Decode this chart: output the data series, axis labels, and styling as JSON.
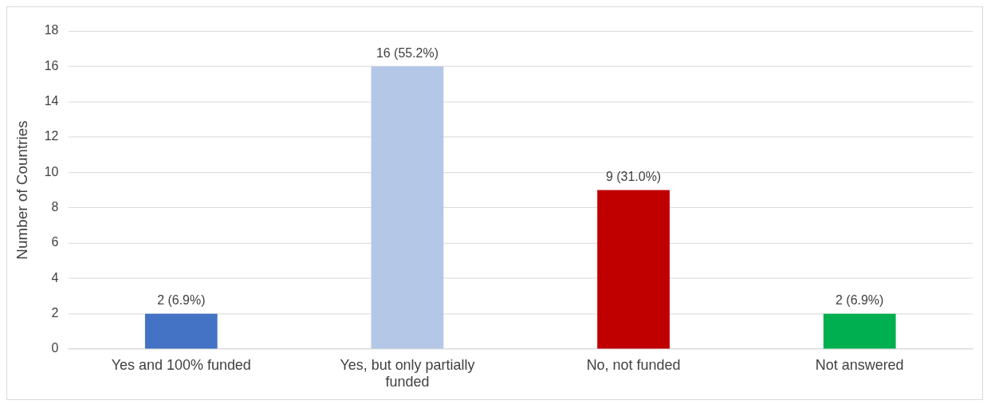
{
  "chart_data": {
    "type": "bar",
    "ylabel": "Number of Countries",
    "categories": [
      "Yes and 100% funded",
      "Yes, but only partially funded",
      "No, not funded",
      "Not answered"
    ],
    "values": [
      2,
      16,
      9,
      2
    ],
    "colors": [
      "#4472c4",
      "#b4c7e7",
      "#c00000",
      "#00b050"
    ],
    "value_labels": [
      "2 (6.9%)",
      "16 (55.2%)",
      "9 (31.0%)",
      "2 (6.9%)"
    ],
    "ylim": [
      0,
      18
    ],
    "yticks": [
      0,
      2,
      4,
      6,
      8,
      10,
      12,
      14,
      16,
      18
    ],
    "grid": "y",
    "legend": false
  }
}
